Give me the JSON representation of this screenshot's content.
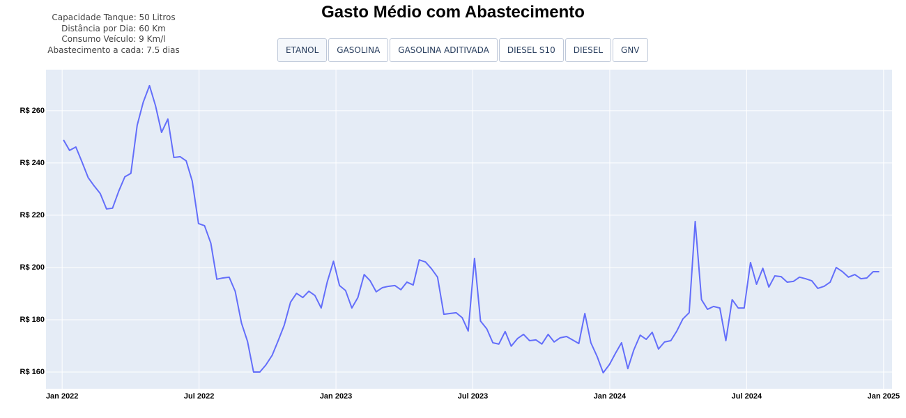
{
  "chart_data": {
    "type": "line",
    "title": "Gasto Médio com Abastecimento",
    "info": [
      "Capacidade Tanque: 50 Litros",
      "Distância por Dia: 60 Km",
      "Consumo Veículo: 9 Km/l",
      "Abastecimento a cada: 7.5 dias"
    ],
    "buttons": [
      "ETANOL",
      "GASOLINA",
      "GASOLINA ADITIVADA",
      "DIESEL S10",
      "DIESEL",
      "GNV"
    ],
    "active_button": 0,
    "grid": true,
    "xlim": [
      2021.941,
      2025.031
    ],
    "xticks": [
      {
        "value": 2022,
        "label": "Jan 2022"
      },
      {
        "value": 2022.5,
        "label": "Jul 2022"
      },
      {
        "value": 2023,
        "label": "Jan 2023"
      },
      {
        "value": 2023.5,
        "label": "Jul 2023"
      },
      {
        "value": 2024,
        "label": "Jan 2024"
      },
      {
        "value": 2024.5,
        "label": "Jul 2024"
      },
      {
        "value": 2025,
        "label": "Jan 2025"
      }
    ],
    "ylim": [
      153.6,
      275.7
    ],
    "yticks": [
      {
        "value": 160,
        "label": "R$ 160"
      },
      {
        "value": 180,
        "label": "R$ 180"
      },
      {
        "value": 200,
        "label": "R$ 200"
      },
      {
        "value": 220,
        "label": "R$ 220"
      },
      {
        "value": 240,
        "label": "R$ 240"
      },
      {
        "value": 260,
        "label": "R$ 260"
      }
    ],
    "x": [
      2022.005,
      2022.027,
      2022.05,
      2022.072,
      2022.095,
      2022.117,
      2022.139,
      2022.162,
      2022.184,
      2022.207,
      2022.229,
      2022.251,
      2022.274,
      2022.296,
      2022.319,
      2022.341,
      2022.363,
      2022.386,
      2022.408,
      2022.431,
      2022.453,
      2022.475,
      2022.498,
      2022.52,
      2022.543,
      2022.565,
      2022.587,
      2022.61,
      2022.632,
      2022.655,
      2022.677,
      2022.699,
      2022.722,
      2022.744,
      2022.767,
      2022.789,
      2022.811,
      2022.834,
      2022.856,
      2022.879,
      2022.901,
      2022.923,
      2022.946,
      2022.968,
      2022.991,
      2023.013,
      2023.035,
      2023.058,
      2023.08,
      2023.103,
      2023.125,
      2023.147,
      2023.17,
      2023.192,
      2023.215,
      2023.237,
      2023.259,
      2023.282,
      2023.304,
      2023.327,
      2023.349,
      2023.371,
      2023.394,
      2023.416,
      2023.439,
      2023.461,
      2023.483,
      2023.506,
      2023.528,
      2023.551,
      2023.573,
      2023.595,
      2023.618,
      2023.64,
      2023.663,
      2023.685,
      2023.707,
      2023.73,
      2023.752,
      2023.775,
      2023.797,
      2023.819,
      2023.842,
      2023.864,
      2023.887,
      2023.909,
      2023.931,
      2023.954,
      2023.976,
      2023.999,
      2024.021,
      2024.043,
      2024.066,
      2024.088,
      2024.111,
      2024.133,
      2024.155,
      2024.178,
      2024.2,
      2024.223,
      2024.245,
      2024.267,
      2024.29,
      2024.312,
      2024.335,
      2024.357,
      2024.379,
      2024.402,
      2024.424,
      2024.447,
      2024.469,
      2024.491,
      2024.514,
      2024.536,
      2024.559,
      2024.581,
      2024.603,
      2024.626,
      2024.648,
      2024.671,
      2024.693,
      2024.715,
      2024.738,
      2024.76,
      2024.783,
      2024.805,
      2024.827,
      2024.85,
      2024.872,
      2024.895,
      2024.917,
      2024.939,
      2024.962,
      2024.984
    ],
    "series": [
      {
        "name": "ETANOL",
        "color": "#636efa",
        "values": [
          248.8,
          244.8,
          246.1,
          240.5,
          234.4,
          231.2,
          228.3,
          222.4,
          222.7,
          229.3,
          234.7,
          236,
          254.4,
          263.2,
          269.6,
          261.9,
          251.7,
          256.8,
          242.1,
          242.4,
          240.8,
          233.1,
          216.8,
          216,
          209.3,
          195.5,
          196,
          196.3,
          190.9,
          178.7,
          171.7,
          160,
          160,
          162.7,
          166.4,
          172,
          177.9,
          186.7,
          190.1,
          188.5,
          190.9,
          189.3,
          184.5,
          194.4,
          202.4,
          193.1,
          191.2,
          184.5,
          188.5,
          197.3,
          194.9,
          190.7,
          192.3,
          192.8,
          193.1,
          191.5,
          194.4,
          193.3,
          202.9,
          202.1,
          199.5,
          196.3,
          182.1,
          182.4,
          182.7,
          180.8,
          175.7,
          203.5,
          179.5,
          176.5,
          171.2,
          170.7,
          175.5,
          169.9,
          172.8,
          174.4,
          172,
          172.3,
          170.7,
          174.4,
          171.5,
          173.1,
          173.6,
          172.3,
          170.9,
          182.4,
          171.2,
          165.9,
          159.7,
          162.9,
          167.2,
          171.2,
          161.3,
          168.5,
          174.1,
          172.5,
          175.2,
          168.8,
          171.5,
          172,
          175.7,
          180.3,
          182.7,
          217.6,
          187.7,
          184,
          185.1,
          184.5,
          172,
          187.7,
          184.5,
          184.5,
          201.9,
          193.6,
          199.7,
          192.5,
          196.8,
          196.5,
          194.4,
          194.7,
          196.3,
          195.7,
          194.9,
          192,
          192.8,
          194.4,
          200,
          198.4,
          196.3,
          197.3,
          195.7,
          196,
          198.4,
          198.4
        ]
      }
    ]
  }
}
